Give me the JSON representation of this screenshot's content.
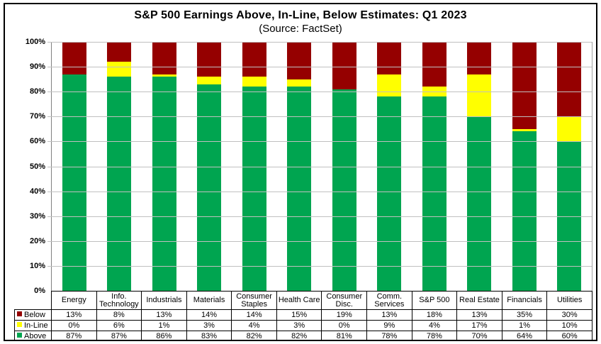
{
  "title": "S&P 500 Earnings Above, In-Line, Below Estimates: Q1 2023",
  "subtitle": "(Source: FactSet)",
  "colors": {
    "below": "#950000",
    "in_line": "#FFFF00",
    "above": "#00A550",
    "gridline": "#c0c0c0",
    "axis_line": "#808080",
    "figure_border": "#000000",
    "table_border": "#000000",
    "background": "#ffffff"
  },
  "value_suffix": "%",
  "chart_data": {
    "type": "bar",
    "stacked": true,
    "title": "S&P 500 Earnings Above, In-Line, Below Estimates: Q1 2023",
    "subtitle": "(Source: FactSet)",
    "categories": [
      "Energy",
      "Info. Technology",
      "Industrials",
      "Materials",
      "Consumer Staples",
      "Health Care",
      "Consumer Disc.",
      "Comm. Services",
      "S&P 500",
      "Real Estate",
      "Financials",
      "Utilities"
    ],
    "series": [
      {
        "name": "Below",
        "color": "#950000",
        "values": [
          13,
          8,
          13,
          14,
          14,
          15,
          19,
          13,
          18,
          13,
          35,
          30
        ]
      },
      {
        "name": "In-Line",
        "color": "#FFFF00",
        "values": [
          0,
          6,
          1,
          3,
          4,
          3,
          0,
          9,
          4,
          17,
          1,
          10
        ]
      },
      {
        "name": "Above",
        "color": "#00A550",
        "values": [
          87,
          87,
          86,
          83,
          82,
          82,
          81,
          78,
          78,
          70,
          64,
          60
        ]
      }
    ],
    "xlabel": "",
    "ylabel": "",
    "ylim": [
      0,
      100
    ],
    "ytick_step": 10,
    "ytick_labels": [
      "0%",
      "10%",
      "20%",
      "30%",
      "40%",
      "50%",
      "60%",
      "70%",
      "80%",
      "90%",
      "100%"
    ],
    "grid": true,
    "legend_position": "table-left",
    "legend_entries": [
      "Below",
      "In-Line",
      "Above"
    ]
  }
}
